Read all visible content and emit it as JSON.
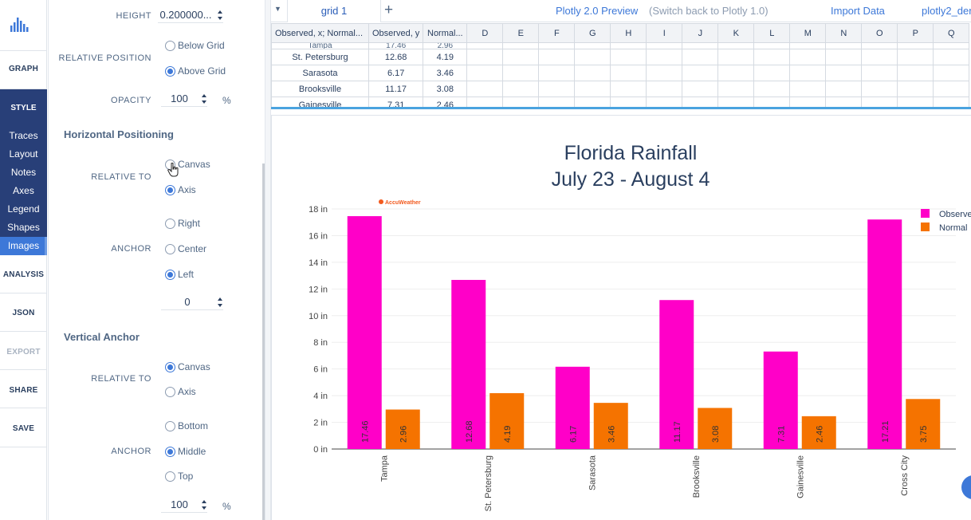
{
  "nav": {
    "graph": "GRAPH",
    "style": "STYLE",
    "style_items": [
      "Traces",
      "Layout",
      "Notes",
      "Axes",
      "Legend",
      "Shapes",
      "Images"
    ],
    "active_item": "Images",
    "analysis": "ANALYSIS",
    "json": "JSON",
    "export": "EXPORT",
    "share": "SHARE",
    "save": "SAVE"
  },
  "panel": {
    "height_label": "HEIGHT",
    "height_value": "0.200000...",
    "relpos_label": "RELATIVE POSITION",
    "relpos_options": [
      "Below Grid",
      "Above Grid"
    ],
    "relpos_selected": "Above Grid",
    "opacity_label": "OPACITY",
    "opacity_value": "100",
    "opacity_unit": "%",
    "hpos_section": "Horizontal Positioning",
    "hrel_label": "RELATIVE TO",
    "hrel_options": [
      "Canvas",
      "Axis"
    ],
    "hrel_selected": "Axis",
    "hanchor_label": "ANCHOR",
    "hanchor_options": [
      "Right",
      "Center",
      "Left"
    ],
    "hanchor_selected": "Left",
    "hanchor_value": "0",
    "vanchor_section": "Vertical Anchor",
    "vrel_label": "RELATIVE TO",
    "vrel_options": [
      "Canvas",
      "Axis"
    ],
    "vrel_selected": "Canvas",
    "vanchor_label": "ANCHOR",
    "vanchor_options": [
      "Bottom",
      "Middle",
      "Top"
    ],
    "vanchor_selected": "Middle",
    "vanchor_value": "100",
    "vanchor_unit": "%"
  },
  "topbar": {
    "grid_tab": "grid 1",
    "plus": "+",
    "preview": "Plotly 2.0 Preview",
    "switch": "(Switch back to Plotly 1.0)",
    "import": "Import Data",
    "filename": "plotly2_der"
  },
  "grid": {
    "headers": [
      "Observed, x; Normal...",
      "Observed, y",
      "Normal...",
      "D",
      "E",
      "F",
      "G",
      "H",
      "I",
      "J",
      "K",
      "L",
      "M",
      "N",
      "O",
      "P",
      "Q"
    ],
    "clipped_row": [
      "Tampa",
      "17.46",
      "2.96"
    ],
    "rows": [
      [
        "St. Petersburg",
        "12.68",
        "4.19"
      ],
      [
        "Sarasota",
        "6.17",
        "3.46"
      ],
      [
        "Brooksville",
        "11.17",
        "3.08"
      ],
      [
        "Gainesville",
        "7.31",
        "2.46"
      ]
    ]
  },
  "chart_data": {
    "type": "bar",
    "title": "Florida Rainfall",
    "subtitle": "July 23 - August 4",
    "categories": [
      "Tampa",
      "St. Petersburg",
      "Sarasota",
      "Brooksville",
      "Gainesville",
      "Cross City"
    ],
    "series": [
      {
        "name": "Observed",
        "color": "#ff00c8",
        "values": [
          17.46,
          12.68,
          6.17,
          11.17,
          7.31,
          17.21
        ]
      },
      {
        "name": "Normal",
        "color": "#f57300",
        "values": [
          2.96,
          4.19,
          3.46,
          3.08,
          2.46,
          3.75
        ]
      }
    ],
    "ylim": [
      0,
      18
    ],
    "ytick_step": 2,
    "ytick_suffix": " in",
    "image_logo": "AccuWeather",
    "grid": true,
    "legend": "top-right"
  },
  "colors": {
    "nav_style_bg": "#283f78",
    "nav_active": "#3d78d8",
    "accent": "#3d78d8"
  }
}
